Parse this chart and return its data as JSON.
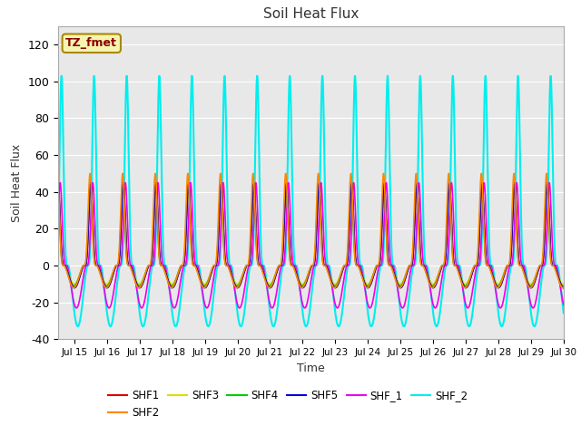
{
  "title": "Soil Heat Flux",
  "xlabel": "Time",
  "ylabel": "Soil Heat Flux",
  "ylim": [
    -40,
    130
  ],
  "yticks": [
    -40,
    -20,
    0,
    20,
    40,
    60,
    80,
    100,
    120
  ],
  "background_color": "#e8e8e8",
  "annotation_text": "TZ_fmet",
  "annotation_bg": "#f5f5b0",
  "annotation_border": "#aa8800",
  "series_order": [
    "SHF1",
    "SHF2",
    "SHF3",
    "SHF4",
    "SHF5",
    "SHF_1",
    "SHF_2"
  ],
  "series": {
    "SHF1": {
      "color": "#dd0000",
      "lw": 1.2,
      "peak": 45,
      "trough": -12,
      "phase": 0.0
    },
    "SHF2": {
      "color": "#ff8800",
      "lw": 1.2,
      "peak": 50,
      "trough": -12,
      "phase": 0.5
    },
    "SHF3": {
      "color": "#dddd00",
      "lw": 1.2,
      "peak": 43,
      "trough": -10,
      "phase": 0.2
    },
    "SHF4": {
      "color": "#00cc00",
      "lw": 1.2,
      "peak": 44,
      "trough": -11,
      "phase": 0.3
    },
    "SHF5": {
      "color": "#0000dd",
      "lw": 1.2,
      "peak": 44,
      "trough": -12,
      "phase": 0.1
    },
    "SHF_1": {
      "color": "#ee00ee",
      "lw": 1.2,
      "peak": 45,
      "trough": -23,
      "phase": -1.5
    },
    "SHF_2": {
      "color": "#00eeee",
      "lw": 1.5,
      "peak": 103,
      "trough": -33,
      "phase": -2.5
    }
  },
  "legend_ncol": 6
}
